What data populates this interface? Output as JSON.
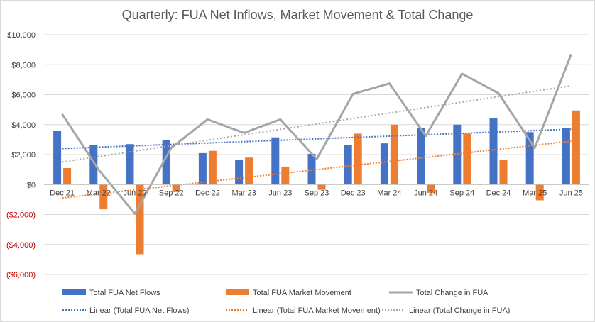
{
  "chart_data": {
    "type": "bar",
    "title": "Quarterly: FUA Net Inflows, Market Movement & Total Change",
    "xlabel": "",
    "ylabel": "",
    "ylim": [
      -6000,
      10000
    ],
    "yticks": [
      10000,
      8000,
      6000,
      4000,
      2000,
      0,
      -2000,
      -4000,
      -6000
    ],
    "ytick_labels": [
      "$10,000",
      "$8,000",
      "$6,000",
      "$4,000",
      "$2,000",
      "$0",
      "($2,000)",
      "($4,000)",
      "($6,000)"
    ],
    "grid": true,
    "legend_position": "bottom",
    "categories": [
      "Dec 21",
      "Mar 22",
      "Jun 22",
      "Sep 22",
      "Dec 22",
      "Mar 23",
      "Jun 23",
      "Sep 23",
      "Dec 23",
      "Mar 24",
      "Jun 24",
      "Sep 24",
      "Dec 24",
      "Mar 25",
      "Jun 25"
    ],
    "series": [
      {
        "name": "Total FUA Net Flows",
        "kind": "bar",
        "color": "#4472c4",
        "values": [
          3600,
          2650,
          2700,
          2950,
          2100,
          1650,
          3150,
          2050,
          2650,
          2750,
          3800,
          4000,
          4450,
          3500,
          3750
        ]
      },
      {
        "name": "Total FUA Market Movement",
        "kind": "bar",
        "color": "#ed7d31",
        "values": [
          1100,
          -1650,
          -4650,
          -500,
          2250,
          1800,
          1200,
          -350,
          3400,
          4000,
          -550,
          3400,
          1650,
          -1050,
          4950
        ]
      },
      {
        "name": "Total Change in FUA",
        "kind": "line",
        "color": "#a5a5a5",
        "values": [
          4700,
          1000,
          -1950,
          2450,
          4350,
          3450,
          4350,
          1700,
          6050,
          6750,
          3250,
          7400,
          6100,
          2450,
          8700
        ]
      }
    ],
    "trendlines": [
      {
        "name": "Linear (Total FUA Net Flows)",
        "color": "#4472c4",
        "series_index": 0
      },
      {
        "name": "Linear (Total FUA Market Movement)",
        "color": "#ed7d31",
        "series_index": 1
      },
      {
        "name": "Linear (Total Change in FUA)",
        "color": "#a5a5a5",
        "series_index": 2
      }
    ]
  }
}
